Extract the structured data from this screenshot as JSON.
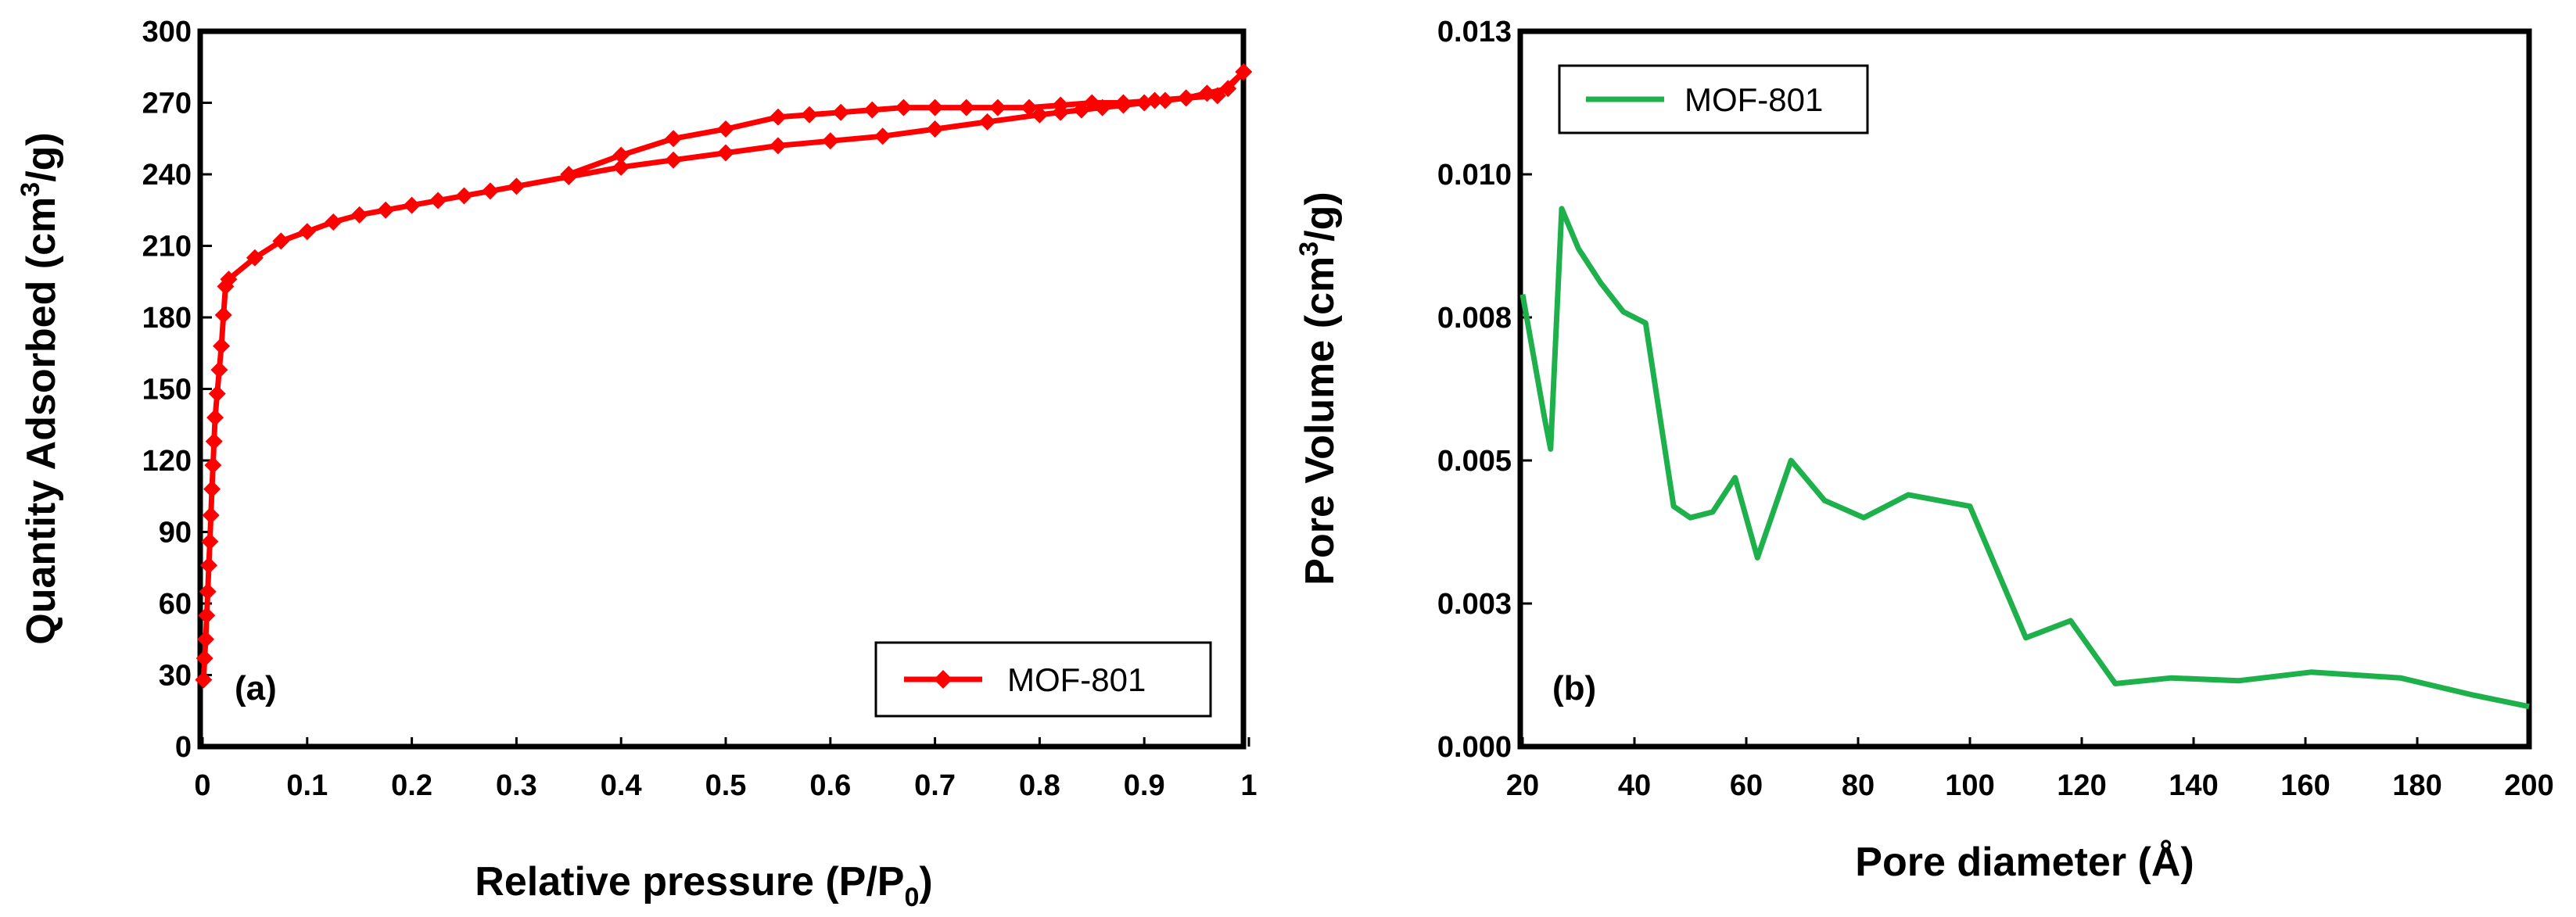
{
  "chart_data": [
    {
      "type": "line",
      "panel_label": "(a)",
      "title": "",
      "xlabel_main": "Relative pressure (P/P",
      "xlabel_sub": "0",
      "xlabel_end": ")",
      "ylabel_main": "Quantity Adsorbed (cm",
      "ylabel_sup": "3",
      "ylabel_end": "/g)",
      "xlim": [
        0,
        1
      ],
      "ylim": [
        0,
        300
      ],
      "xticks": [
        "0",
        "0.1",
        "0.2",
        "0.3",
        "0.4",
        "0.5",
        "0.6",
        "0.7",
        "0.8",
        "0.9",
        "1"
      ],
      "xtick_values": [
        0,
        0.1,
        0.2,
        0.3,
        0.4,
        0.5,
        0.6,
        0.7,
        0.8,
        0.9,
        1.0
      ],
      "yticks": [
        "0",
        "30",
        "60",
        "90",
        "120",
        "150",
        "180",
        "210",
        "240",
        "270",
        "300"
      ],
      "ytick_values": [
        0,
        30,
        60,
        90,
        120,
        150,
        180,
        210,
        240,
        270,
        300
      ],
      "grid": false,
      "legend_position": "bottom-right",
      "series": [
        {
          "name": "MOF-801",
          "color": "#ff0000",
          "marker": "diamond",
          "x": [
            0.001,
            0.002,
            0.003,
            0.004,
            0.005,
            0.006,
            0.007,
            0.008,
            0.009,
            0.01,
            0.011,
            0.012,
            0.014,
            0.016,
            0.018,
            0.02,
            0.022,
            0.025,
            0.05,
            0.075,
            0.1,
            0.125,
            0.15,
            0.175,
            0.2,
            0.225,
            0.25,
            0.275,
            0.3,
            0.35,
            0.4,
            0.45,
            0.5,
            0.55,
            0.6,
            0.65,
            0.7,
            0.75,
            0.8,
            0.82,
            0.84,
            0.86,
            0.88,
            0.9,
            0.92,
            0.94,
            0.96,
            0.98,
            0.995,
            0.97,
            0.94,
            0.91,
            0.88,
            0.85,
            0.82,
            0.79,
            0.76,
            0.73,
            0.7,
            0.67,
            0.64,
            0.61,
            0.58,
            0.55,
            0.5,
            0.45,
            0.4,
            0.35
          ],
          "y": [
            28,
            37,
            45,
            55,
            65,
            76,
            86,
            97,
            108,
            118,
            128,
            138,
            148,
            158,
            168,
            181,
            193,
            196,
            205,
            212,
            216,
            220,
            223,
            225,
            227,
            229,
            231,
            233,
            235,
            239,
            243,
            246,
            249,
            252,
            254,
            256,
            259,
            262,
            265,
            266,
            267,
            268,
            269,
            270,
            271,
            272,
            274,
            276,
            283,
            273,
            272,
            271,
            270,
            270,
            269,
            268,
            268,
            268,
            268,
            268,
            267,
            266,
            265,
            264,
            259,
            255,
            248,
            240
          ]
        }
      ]
    },
    {
      "type": "line",
      "panel_label": "(b)",
      "title": "",
      "xlabel": "Pore diameter (Å)",
      "ylabel_main": "Pore Volume (cm",
      "ylabel_sup": "3",
      "ylabel_end": "/g)",
      "xlim": [
        20,
        200
      ],
      "ylim": [
        0,
        0.0125
      ],
      "xticks": [
        "20",
        "40",
        "60",
        "80",
        "100",
        "120",
        "140",
        "160",
        "180",
        "200"
      ],
      "xtick_values": [
        20,
        40,
        60,
        80,
        100,
        120,
        140,
        160,
        180,
        200
      ],
      "yticks": [
        "0.000",
        "0.003",
        "0.005",
        "0.008",
        "0.010",
        "0.013"
      ],
      "ytick_values": [
        0,
        0.0025,
        0.005,
        0.0075,
        0.01,
        0.0125
      ],
      "grid": false,
      "legend_position": "top-left",
      "series": [
        {
          "name": "MOF-801",
          "color": "#1db04b",
          "marker": "none",
          "x": [
            20,
            22,
            24,
            25,
            27,
            30,
            34,
            38,
            42,
            47,
            50,
            54,
            58,
            62,
            68,
            74,
            81,
            89,
            100,
            110,
            118,
            126,
            136,
            148,
            161,
            177,
            190,
            200
          ],
          "y": [
            0.0079,
            0.0068,
            0.0057,
            0.0052,
            0.0094,
            0.0087,
            0.0081,
            0.0076,
            0.0074,
            0.0042,
            0.004,
            0.0041,
            0.0047,
            0.0033,
            0.005,
            0.0043,
            0.004,
            0.0044,
            0.0042,
            0.0019,
            0.0022,
            0.0011,
            0.0012,
            0.00115,
            0.0013,
            0.0012,
            0.0009,
            0.0007
          ]
        }
      ]
    }
  ]
}
